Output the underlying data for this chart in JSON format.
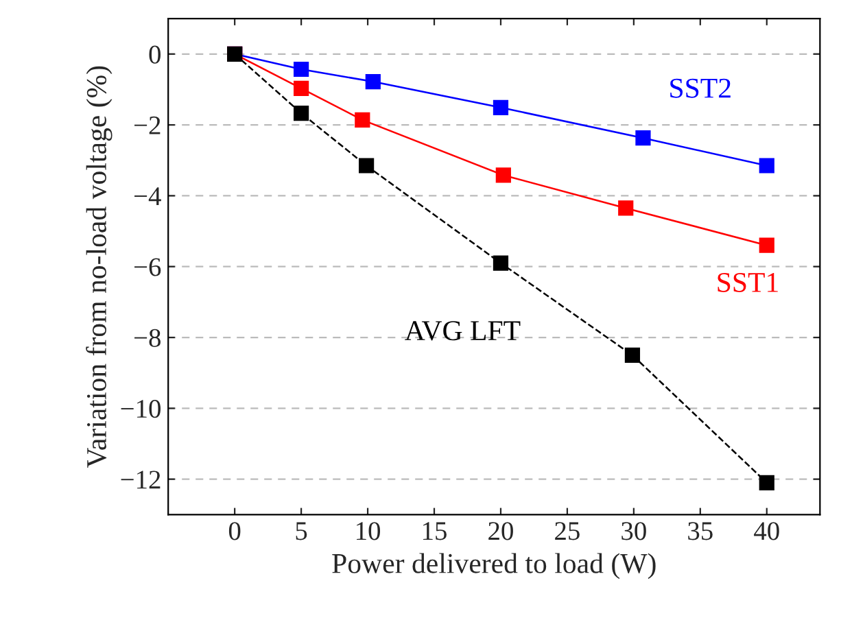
{
  "chart_data": {
    "type": "line",
    "xlabel": "Power delivered to load (W)",
    "ylabel": "Variation from no-load voltage (%)",
    "series": [
      {
        "name": "SST2",
        "color": "#0000ff",
        "x": [
          0,
          5,
          10.4,
          20,
          30.7,
          40
        ],
        "values": [
          0,
          -0.43,
          -0.78,
          -1.51,
          -2.37,
          -3.15
        ]
      },
      {
        "name": "SST1",
        "color": "#ff0000",
        "x": [
          0,
          5,
          9.6,
          20.2,
          29.4,
          40
        ],
        "values": [
          0,
          -0.97,
          -1.86,
          -3.42,
          -4.35,
          -5.4
        ]
      },
      {
        "name": "AVG LFT",
        "color": "#000000",
        "line_style": "dashed",
        "x": [
          0,
          5,
          9.9,
          20,
          29.9,
          40
        ],
        "values": [
          0,
          -1.67,
          -3.15,
          -5.9,
          -8.5,
          -12.1
        ]
      }
    ],
    "marker": "square",
    "grid": "y",
    "xlim": [
      -5,
      44
    ],
    "ylim": [
      -13,
      1
    ],
    "xticks": [
      0,
      5,
      10,
      15,
      20,
      25,
      30,
      35,
      40
    ],
    "yticks": [
      {
        "value": -12,
        "label": "−12"
      },
      {
        "value": -10,
        "label": "−10"
      },
      {
        "value": -8,
        "label": "−8"
      },
      {
        "value": -6,
        "label": "−6"
      },
      {
        "value": -4,
        "label": "−4"
      },
      {
        "value": -2,
        "label": "−2"
      },
      0
    ]
  }
}
